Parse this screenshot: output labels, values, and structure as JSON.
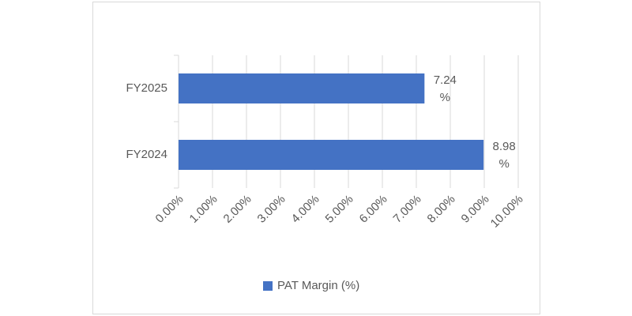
{
  "chart_data": {
    "type": "hbar",
    "categories": [
      "FY2025",
      "FY2024"
    ],
    "series": [
      {
        "name": "PAT Margin (%)",
        "color": "#4472c4",
        "values": [
          7.24,
          8.98
        ],
        "value_labels": [
          "7.24 %",
          "8.98 %"
        ]
      }
    ],
    "xlim": [
      0,
      10
    ],
    "xticks": [
      {
        "value": 0,
        "label": "0.00%"
      },
      {
        "value": 1,
        "label": "1.00%"
      },
      {
        "value": 2,
        "label": "2.00%"
      },
      {
        "value": 3,
        "label": "3.00%"
      },
      {
        "value": 4,
        "label": "4.00%"
      },
      {
        "value": 5,
        "label": "5.00%"
      },
      {
        "value": 6,
        "label": "6.00%"
      },
      {
        "value": 7,
        "label": "7.00%"
      },
      {
        "value": 8,
        "label": "8.00%"
      },
      {
        "value": 9,
        "label": "9.00%"
      },
      {
        "value": 10,
        "label": "10.00%"
      }
    ],
    "grid": true,
    "legend": "bottom"
  }
}
